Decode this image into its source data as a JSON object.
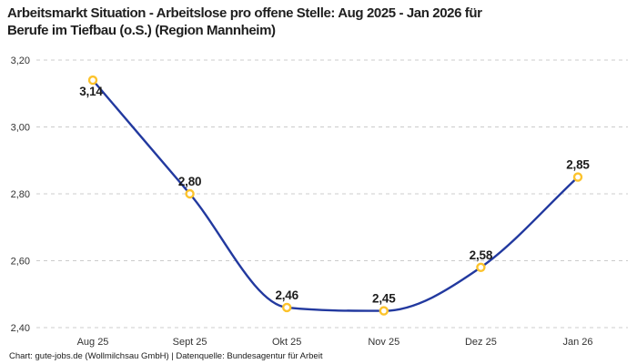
{
  "title_lines": [
    "Arbeitsmarkt Situation - Arbeitslose pro offene Stelle: Aug 2025 - Jan 2026 für",
    "Berufe im Tiefbau (o.S.) (Region Mannheim)"
  ],
  "footer": "Chart: gute-jobs.de (Wollmilchsau GmbH) | Datenquelle: Bundesagentur für Arbeit",
  "chart_data": {
    "type": "line",
    "title": "Arbeitsmarkt Situation - Arbeitslose pro offene Stelle: Aug 2025 - Jan 2026 für Berufe im Tiefbau (o.S.) (Region Mannheim)",
    "categories": [
      "Aug 25",
      "Sept 25",
      "Okt 25",
      "Nov 25",
      "Dez 25",
      "Jan 26"
    ],
    "values": [
      3.14,
      2.8,
      2.46,
      2.45,
      2.58,
      2.85
    ],
    "point_labels": [
      "3,14",
      "2,80",
      "2,46",
      "2,45",
      "2,58",
      "2,85"
    ],
    "y_ticks": [
      {
        "v": 3.2,
        "label": "3,20"
      },
      {
        "v": 3.0,
        "label": "3,00"
      },
      {
        "v": 2.8,
        "label": "2,80"
      },
      {
        "v": 2.6,
        "label": "2,60"
      },
      {
        "v": 2.4,
        "label": "2,40"
      }
    ],
    "ylim": [
      2.4,
      3.2
    ],
    "xlabel": "",
    "ylabel": "",
    "legend": "none",
    "grid": "horizontal-dashed",
    "line_color": "#22399f",
    "marker_color": "#fcc32c",
    "marker_fill": "#ffffff",
    "grid_color": "#cccccc",
    "axis_label_color": "#333333",
    "data_label_color": "#1d1d1d"
  }
}
